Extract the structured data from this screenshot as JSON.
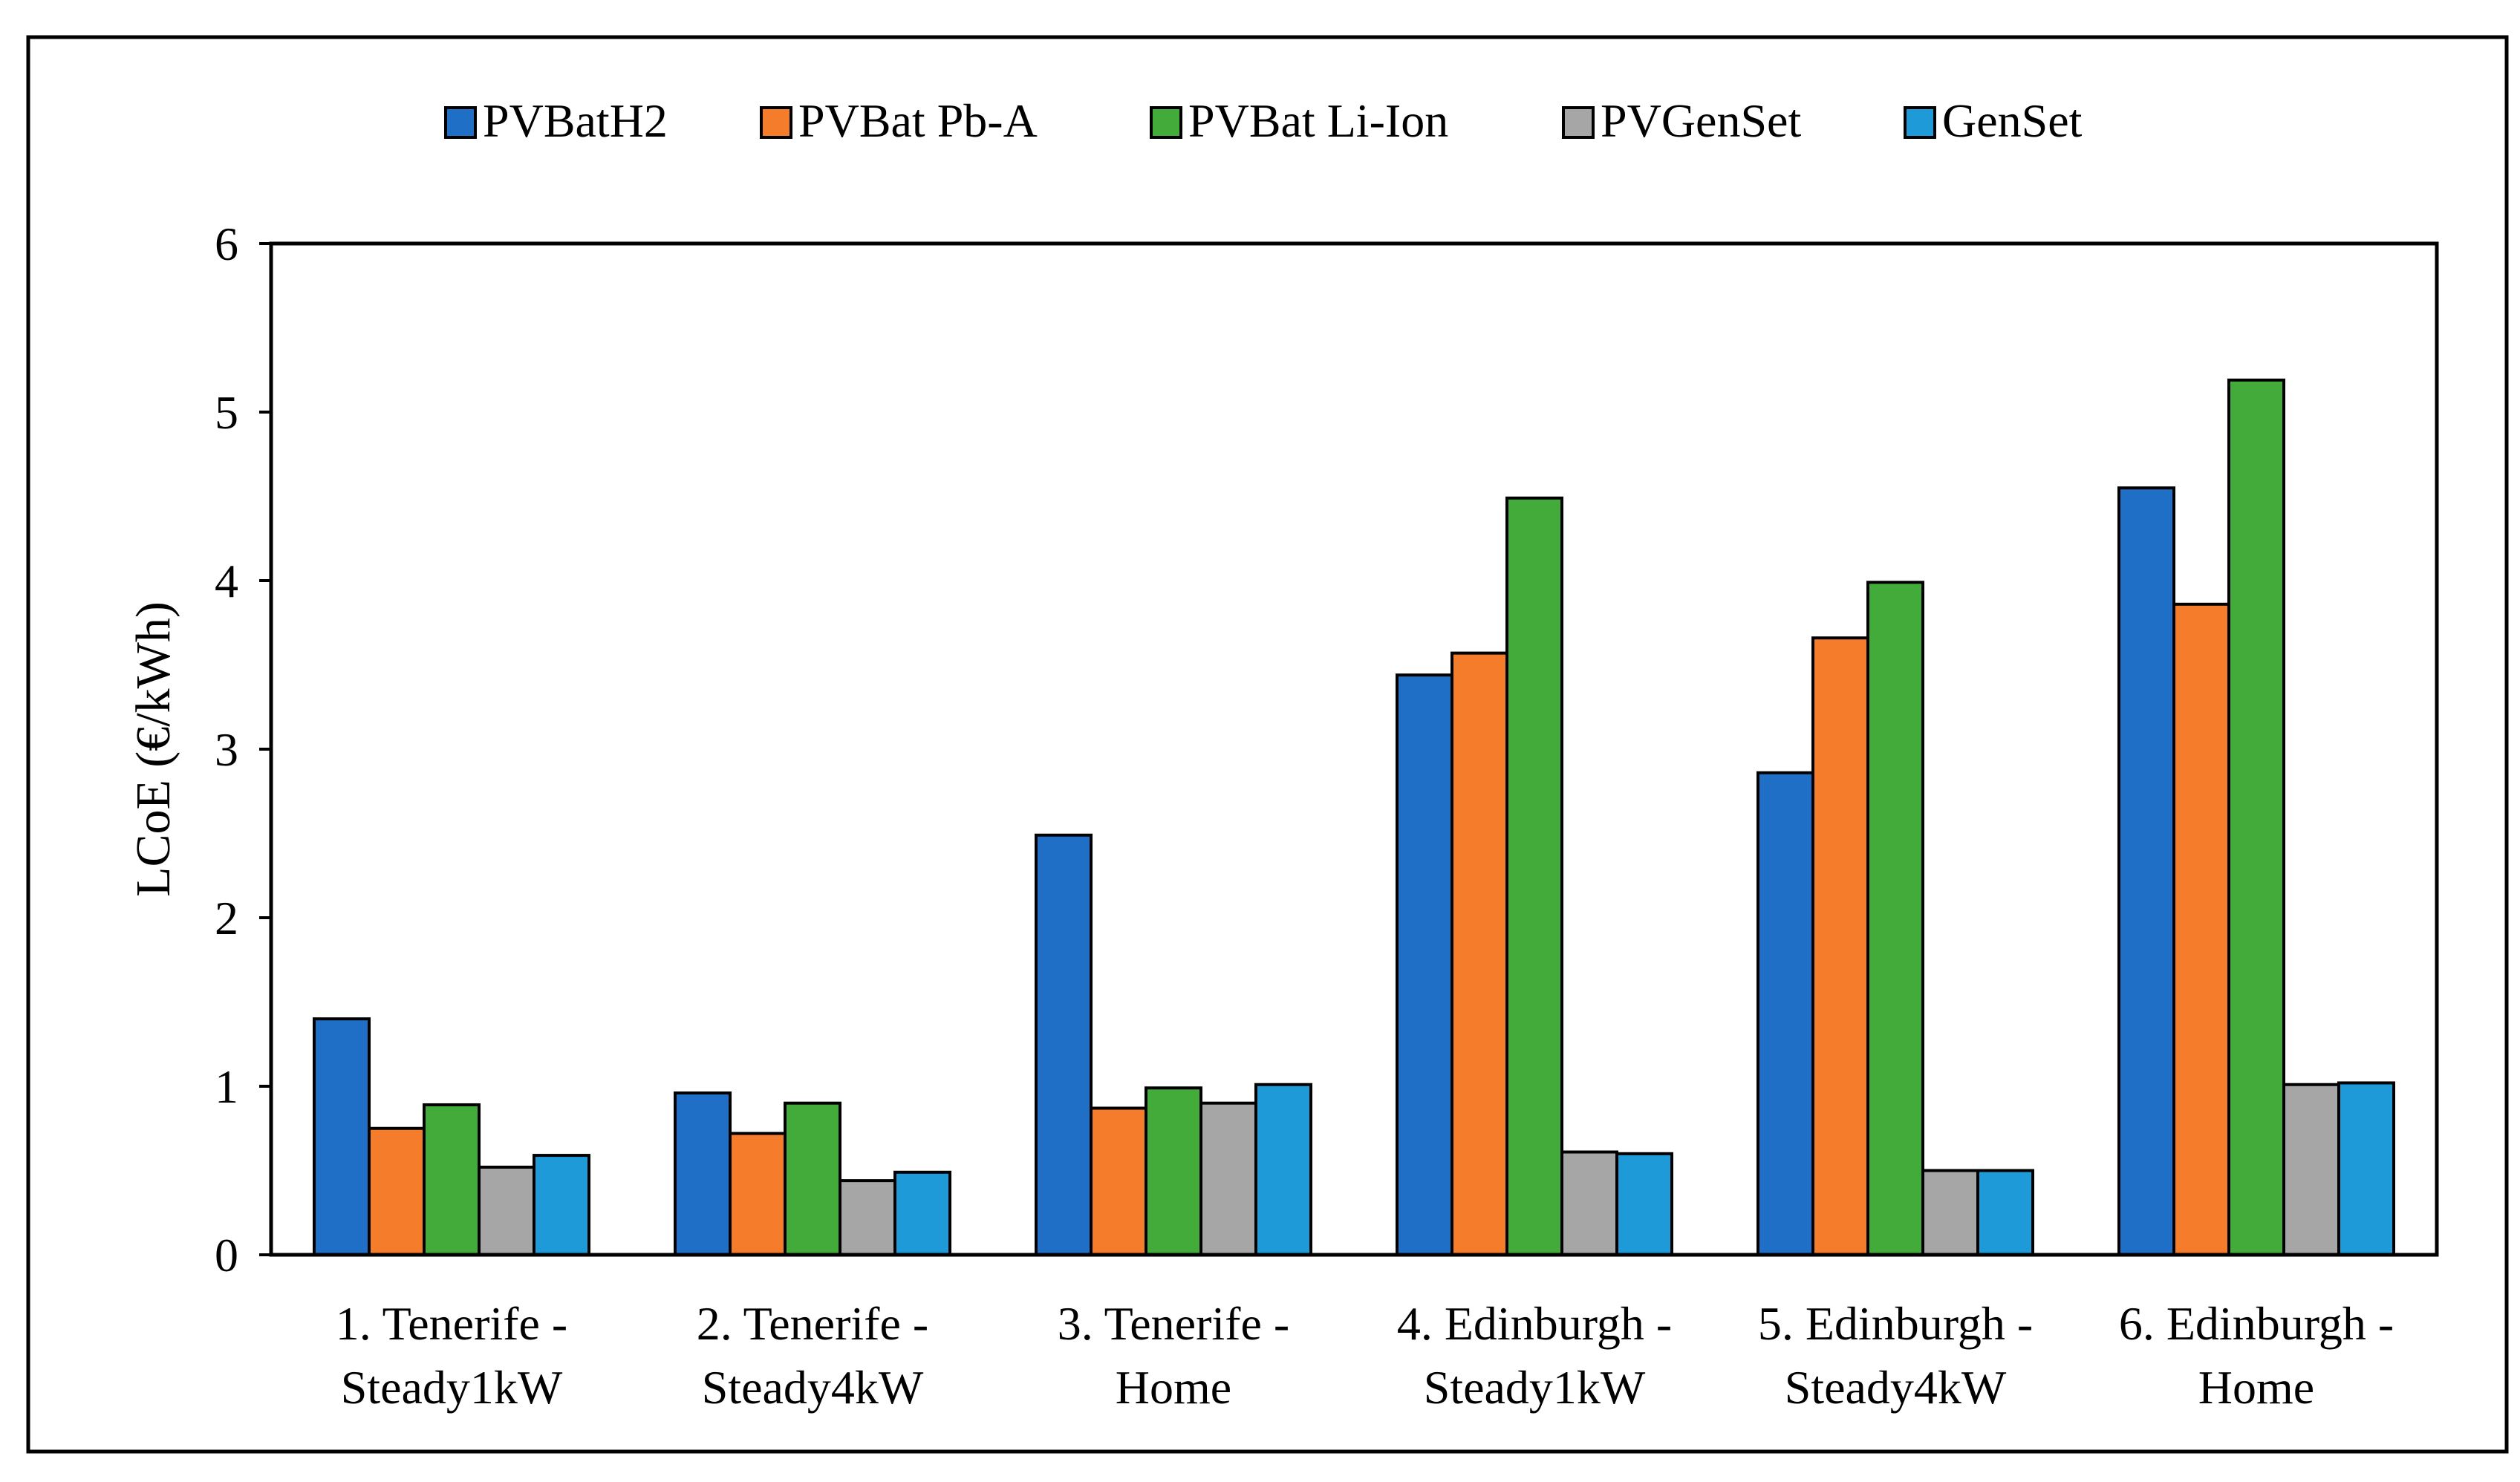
{
  "chart_data": {
    "type": "bar",
    "title": "",
    "xlabel": "",
    "ylabel": "LCoE (€/kWh)",
    "ylim": [
      0,
      6
    ],
    "yticks": [
      "0",
      "1",
      "2",
      "3",
      "4",
      "5",
      "6"
    ],
    "grid": false,
    "legend_position": "top",
    "categories": [
      [
        "1. Tenerife -",
        "Steady1kW"
      ],
      [
        "2. Tenerife -",
        "Steady4kW"
      ],
      [
        "3. Tenerife -",
        "Home"
      ],
      [
        "4. Edinburgh -",
        "Steady1kW"
      ],
      [
        "5. Edinburgh -",
        "Steady4kW"
      ],
      [
        "6. Edinburgh -",
        "Home"
      ]
    ],
    "series": [
      {
        "name": "PVBatH2",
        "color": "#1f6fc6",
        "values": [
          1.4,
          0.96,
          2.49,
          3.44,
          2.86,
          4.55
        ]
      },
      {
        "name": "PVBat Pb-A",
        "color": "#f47c2a",
        "values": [
          0.75,
          0.72,
          0.87,
          3.57,
          3.66,
          3.86
        ]
      },
      {
        "name": "PVBat Li-Ion",
        "color": "#43ab3a",
        "values": [
          0.89,
          0.9,
          0.99,
          4.49,
          3.99,
          5.19
        ]
      },
      {
        "name": "PVGenSet",
        "color": "#a6a6a6",
        "values": [
          0.52,
          0.44,
          0.9,
          0.61,
          0.5,
          1.01
        ]
      },
      {
        "name": "GenSet",
        "color": "#1f9ad8",
        "values": [
          0.59,
          0.49,
          1.01,
          0.6,
          0.5,
          1.02
        ]
      }
    ]
  }
}
